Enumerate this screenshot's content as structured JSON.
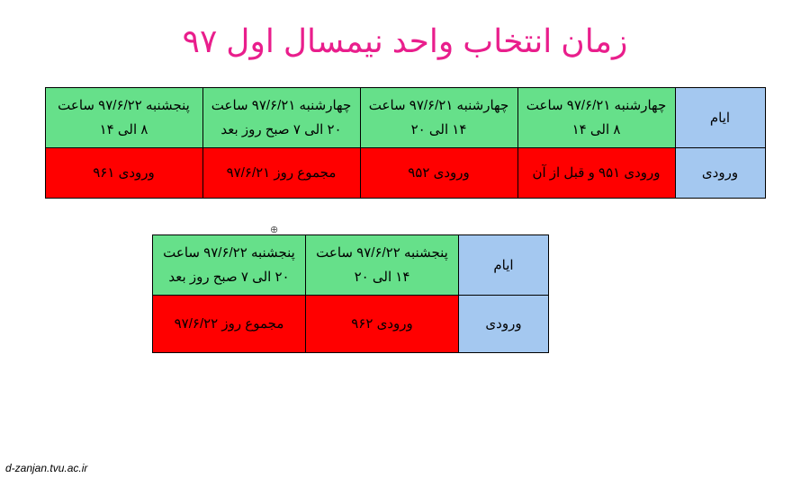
{
  "title": {
    "text": "زمان انتخاب واحد نیمسال اول ۹۷",
    "color": "#e91e8c"
  },
  "colors": {
    "header_bg": "#a4c8f0",
    "days_bg": "#66e08a",
    "entry_bg": "#ff0000",
    "border": "#000000",
    "text": "#000000"
  },
  "table1": {
    "row_header_days": "ایام",
    "row_header_entry": "ورودی",
    "days": [
      "چهارشنبه ۹۷/۶/۲۱ ساعت ۸ الی ۱۴",
      "چهارشنبه ۹۷/۶/۲۱ ساعت ۱۴ الی ۲۰",
      "چهارشنبه ۹۷/۶/۲۱ ساعت ۲۰ الی ۷ صبح روز بعد",
      "پنجشنبه ۹۷/۶/۲۲ ساعت ۸ الی ۱۴"
    ],
    "entries": [
      "ورودی ۹۵۱ و قبل از آن",
      "ورودی ۹۵۲",
      "مجموع روز ۹۷/۶/۲۱",
      "ورودی ۹۶۱"
    ]
  },
  "table2": {
    "row_header_days": "ایام",
    "row_header_entry": "ورودی",
    "days": [
      "پنجشنبه ۹۷/۶/۲۲ ساعت ۱۴ الی ۲۰",
      "پنجشنبه ۹۷/۶/۲۲ ساعت ۲۰ الی ۷ صبح روز بعد"
    ],
    "entries": [
      "ورودی ۹۶۲",
      "مجموع روز ۹۷/۶/۲۲"
    ]
  },
  "footer_url": "d-zanjan.tvu.ac.ir",
  "anchor_glyph": "⊕"
}
